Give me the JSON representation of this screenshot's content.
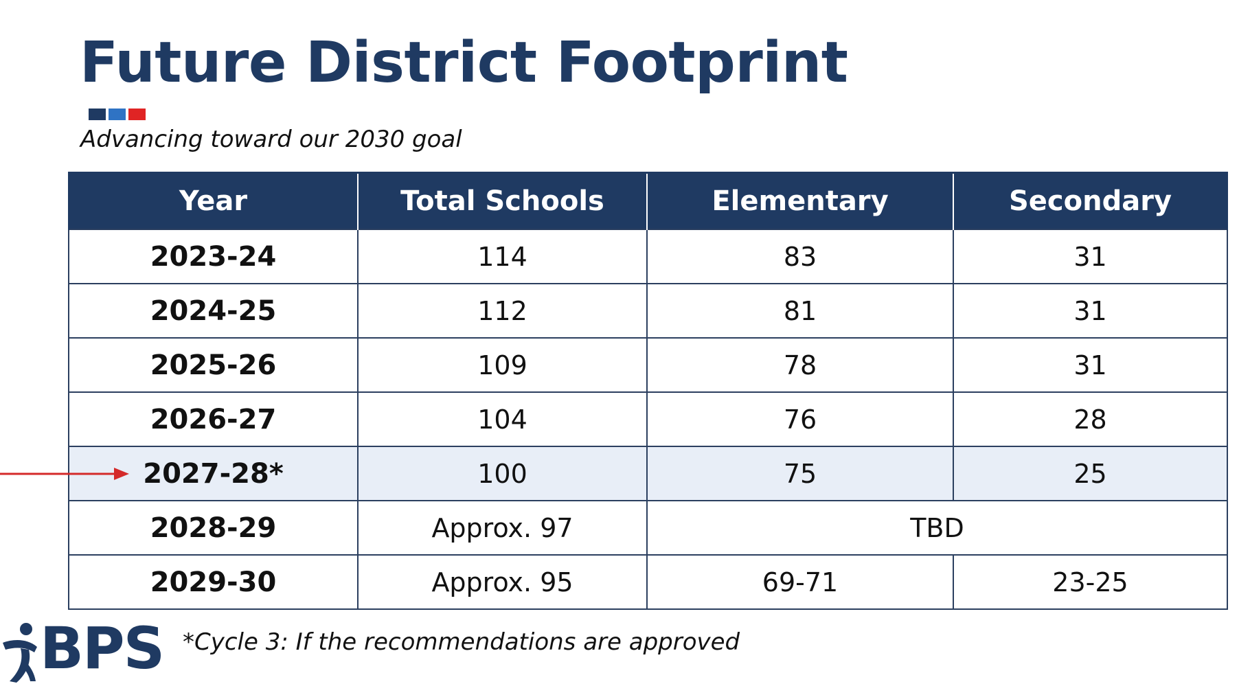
{
  "title": "Future District Footprint",
  "subtitle": "Advancing toward our 2030 goal",
  "accent_colors": [
    "#1f3a62",
    "#2f73c4",
    "#e02424"
  ],
  "table": {
    "headers": [
      "Year",
      "Total Schools",
      "Elementary",
      "Secondary"
    ],
    "rows": [
      {
        "year": "2023-24",
        "total": "114",
        "elementary": "83",
        "secondary": "31"
      },
      {
        "year": "2024-25",
        "total": "112",
        "elementary": "81",
        "secondary": "31"
      },
      {
        "year": "2025-26",
        "total": "109",
        "elementary": "78",
        "secondary": "31"
      },
      {
        "year": "2026-27",
        "total": "104",
        "elementary": "76",
        "secondary": "28"
      },
      {
        "year": "2027-28*",
        "total": "100",
        "elementary": "75",
        "secondary": "25",
        "highlighted": true
      },
      {
        "year": "2028-29",
        "total": "Approx. 97",
        "elementary_secondary_merged": "TBD"
      },
      {
        "year": "2029-30",
        "total": "Approx. 95",
        "elementary": "69-71",
        "secondary": "23-25"
      }
    ]
  },
  "arrow": {
    "target_row": "2027-28*",
    "color": "#d42a2a",
    "icon": "arrow-right-icon"
  },
  "logo": {
    "text": "BPS",
    "icon": "running-figure-icon"
  },
  "footnote": "*Cycle 3: If the recommendations are approved"
}
